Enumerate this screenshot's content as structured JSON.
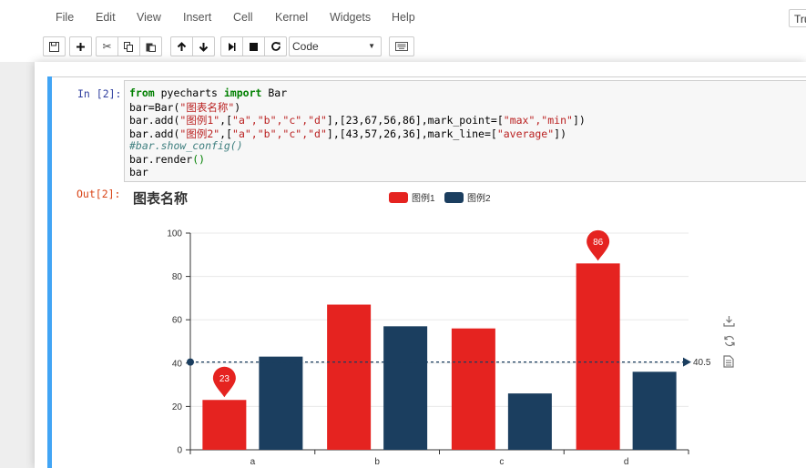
{
  "menu": {
    "file": "File",
    "edit": "Edit",
    "view": "View",
    "insert": "Insert",
    "cell": "Cell",
    "kernel": "Kernel",
    "widgets": "Widgets",
    "help": "Help"
  },
  "trusted_label": "Tru",
  "toolbar": {
    "cell_type": "Code",
    "icons": [
      "save-icon",
      "plus-icon",
      "cut-icon",
      "copy-icon",
      "paste-icon",
      "arrow-up-icon",
      "arrow-down-icon",
      "step-forward-icon",
      "stop-icon",
      "restart-icon",
      "keyboard-icon"
    ]
  },
  "cell": {
    "in_prompt": "In [2]:",
    "out_prompt": "Out[2]:",
    "code": {
      "l1_kw1": "from",
      "l1_mid": " pyecharts ",
      "l1_kw2": "import",
      "l1_end": " Bar",
      "l2_a": "bar=Bar(",
      "l2_s": "\"图表名称\"",
      "l2_b": ")",
      "l3_a": "bar.add(",
      "l3_s1": "\"图例1\"",
      "l3_b": ",[",
      "l3_s2": "\"a\",\"b\",\"c\",\"d\"",
      "l3_c": "],[23,67,56,86],mark_point=[",
      "l3_s3": "\"max\",\"min\"",
      "l3_d": "])",
      "l4_a": "bar.add(",
      "l4_s1": "\"图例2\"",
      "l4_b": ",[",
      "l4_s2": "\"a\",\"b\",\"c\",\"d\"",
      "l4_c": "],[43,57,26,36],mark_line=[",
      "l4_s3": "\"average\"",
      "l4_d": "])",
      "l5": "#bar.show_config()",
      "l6_a": "bar.render",
      "l6_p": "()",
      "l7": "bar"
    }
  },
  "chart_data": {
    "type": "bar",
    "title": "图表名称",
    "categories": [
      "a",
      "b",
      "c",
      "d"
    ],
    "series": [
      {
        "name": "图例1",
        "values": [
          23,
          67,
          56,
          86
        ],
        "color": "#e52320"
      },
      {
        "name": "图例2",
        "values": [
          43,
          57,
          26,
          36
        ],
        "color": "#1b3e5f"
      }
    ],
    "ylim": [
      0,
      100
    ],
    "yticks": [
      0,
      20,
      40,
      60,
      80,
      100
    ],
    "mark_points": [
      {
        "series": "图例1",
        "category": "d",
        "value": 86,
        "label": "86"
      },
      {
        "series": "图例1",
        "category": "a",
        "value": 23,
        "label": "23"
      }
    ],
    "mark_line": {
      "series": "图例2",
      "type": "average",
      "value": 40.5,
      "label": "40.5"
    },
    "legend_position": "top-center",
    "grid": true,
    "toolbox": [
      "download-icon",
      "refresh-icon",
      "data-view-icon"
    ]
  }
}
